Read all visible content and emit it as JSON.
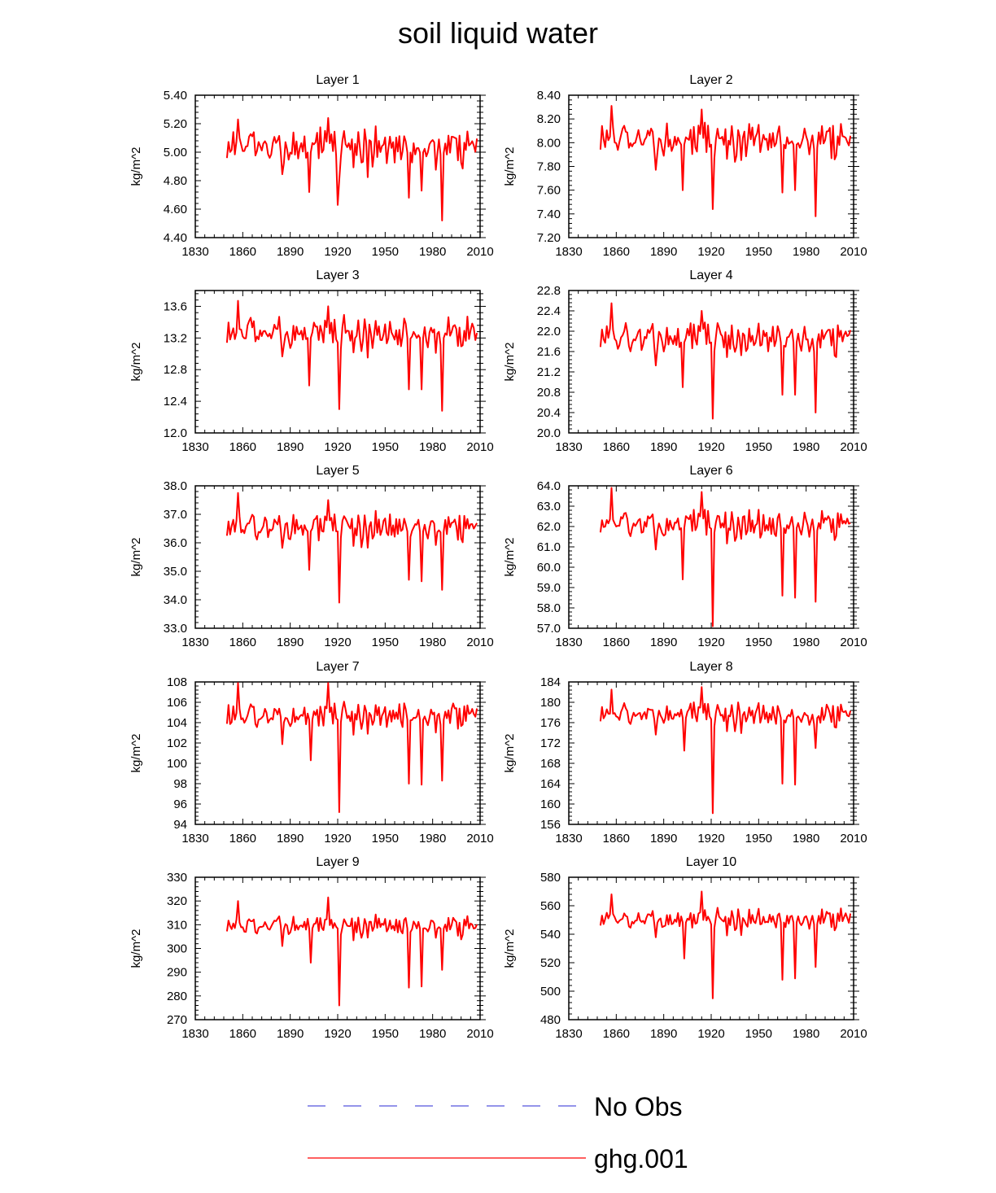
{
  "title": "soil liquid water",
  "colors": {
    "series": "#ff0000",
    "noobs": "#5555dd",
    "axis": "#000000"
  },
  "legend": [
    {
      "label": "No Obs",
      "style": "dashed",
      "color": "#5555dd"
    },
    {
      "label": "ghg.001",
      "style": "solid",
      "color": "#ff0000"
    }
  ],
  "chart_data": [
    {
      "type": "line",
      "title": "Layer 1",
      "ylabel": "kg/m^2",
      "xlim": [
        1830,
        2010
      ],
      "ylim": [
        4.4,
        5.4
      ],
      "xticks": [
        1830,
        1860,
        1890,
        1920,
        1950,
        1980,
        2010
      ],
      "xticklabels": [
        "1830",
        "1860",
        "1890",
        "1920",
        "1950",
        "1980",
        "2010"
      ],
      "yticks": [
        4.4,
        4.6,
        4.8,
        5.0,
        5.2,
        5.4
      ],
      "yticklabels": [
        "4.40",
        "4.60",
        "4.80",
        "5.00",
        "5.20",
        "5.40"
      ],
      "base": 5.05,
      "baseline_variation": 0.06,
      "amp": 0.13,
      "x_start": 1850,
      "x_end": 2008,
      "dips": [
        [
          1902,
          4.72
        ],
        [
          1920,
          4.63
        ],
        [
          1965,
          4.68
        ],
        [
          1973,
          4.73
        ],
        [
          1986,
          4.52
        ]
      ],
      "peaks": [
        [
          1857,
          5.23
        ],
        [
          1914,
          5.24
        ]
      ],
      "series": [
        {
          "name": "ghg.001"
        }
      ]
    },
    {
      "type": "line",
      "title": "Layer 2",
      "ylabel": "kg/m^2",
      "xlim": [
        1830,
        2010
      ],
      "ylim": [
        7.2,
        8.4
      ],
      "xticks": [
        1830,
        1860,
        1890,
        1920,
        1950,
        1980,
        2010
      ],
      "xticklabels": [
        "1830",
        "1860",
        "1890",
        "1920",
        "1950",
        "1980",
        "2010"
      ],
      "yticks": [
        7.2,
        7.4,
        7.6,
        7.8,
        8.0,
        8.2,
        8.4
      ],
      "yticklabels": [
        "7.20",
        "7.40",
        "7.60",
        "7.80",
        "8.00",
        "8.20",
        "8.40"
      ],
      "base": 8.04,
      "baseline_variation": 0.07,
      "amp": 0.14,
      "x_start": 1850,
      "x_end": 2008,
      "dips": [
        [
          1902,
          7.6
        ],
        [
          1921,
          7.44
        ],
        [
          1965,
          7.58
        ],
        [
          1973,
          7.6
        ],
        [
          1986,
          7.38
        ]
      ],
      "peaks": [
        [
          1857,
          8.31
        ],
        [
          1914,
          8.28
        ]
      ],
      "series": [
        {
          "name": "ghg.001"
        }
      ]
    },
    {
      "type": "line",
      "title": "Layer 3",
      "ylabel": "kg/m^2",
      "xlim": [
        1830,
        2010
      ],
      "ylim": [
        12.0,
        13.8
      ],
      "xticks": [
        1830,
        1860,
        1890,
        1920,
        1950,
        1980,
        2010
      ],
      "xticklabels": [
        "1830",
        "1860",
        "1890",
        "1920",
        "1950",
        "1980",
        "2010"
      ],
      "yticks": [
        12.0,
        12.4,
        12.8,
        13.2,
        13.6
      ],
      "yticklabels": [
        "12.0",
        "12.4",
        "12.8",
        "13.2",
        "13.6"
      ],
      "base": 13.28,
      "baseline_variation": 0.1,
      "amp": 0.2,
      "x_start": 1850,
      "x_end": 2008,
      "dips": [
        [
          1902,
          12.6
        ],
        [
          1921,
          12.3
        ],
        [
          1965,
          12.55
        ],
        [
          1973,
          12.55
        ],
        [
          1986,
          12.28
        ]
      ],
      "peaks": [
        [
          1857,
          13.67
        ],
        [
          1914,
          13.6
        ]
      ],
      "series": [
        {
          "name": "ghg.001"
        }
      ]
    },
    {
      "type": "line",
      "title": "Layer 4",
      "ylabel": "kg/m^2",
      "xlim": [
        1830,
        2010
      ],
      "ylim": [
        20.0,
        22.8
      ],
      "xticks": [
        1830,
        1860,
        1890,
        1920,
        1950,
        1980,
        2010
      ],
      "xticklabels": [
        "1830",
        "1860",
        "1890",
        "1920",
        "1950",
        "1980",
        "2010"
      ],
      "yticks": [
        20.0,
        20.4,
        20.8,
        21.2,
        21.6,
        22.0,
        22.4,
        22.8
      ],
      "yticklabels": [
        "20.0",
        "20.4",
        "20.8",
        "21.2",
        "21.6",
        "22.0",
        "22.4",
        "22.8"
      ],
      "base": 21.9,
      "baseline_variation": 0.15,
      "amp": 0.3,
      "x_start": 1850,
      "x_end": 2008,
      "dips": [
        [
          1902,
          20.9
        ],
        [
          1921,
          20.28
        ],
        [
          1965,
          20.75
        ],
        [
          1973,
          20.75
        ],
        [
          1986,
          20.4
        ]
      ],
      "peaks": [
        [
          1857,
          22.55
        ],
        [
          1914,
          22.4
        ]
      ],
      "series": [
        {
          "name": "ghg.001"
        }
      ]
    },
    {
      "type": "line",
      "title": "Layer 5",
      "ylabel": "kg/m^2",
      "xlim": [
        1830,
        2010
      ],
      "ylim": [
        33.0,
        38.0
      ],
      "xticks": [
        1830,
        1860,
        1890,
        1920,
        1950,
        1980,
        2010
      ],
      "xticklabels": [
        "1830",
        "1860",
        "1890",
        "1920",
        "1950",
        "1980",
        "2010"
      ],
      "yticks": [
        33.0,
        34.0,
        35.0,
        36.0,
        37.0,
        38.0
      ],
      "yticklabels": [
        "33.0",
        "34.0",
        "35.0",
        "36.0",
        "37.0",
        "38.0"
      ],
      "base": 36.6,
      "baseline_variation": 0.25,
      "amp": 0.5,
      "x_start": 1850,
      "x_end": 2008,
      "dips": [
        [
          1902,
          35.05
        ],
        [
          1921,
          33.9
        ],
        [
          1965,
          34.7
        ],
        [
          1973,
          34.65
        ],
        [
          1986,
          34.35
        ]
      ],
      "peaks": [
        [
          1857,
          37.75
        ],
        [
          1914,
          37.5
        ]
      ],
      "series": [
        {
          "name": "ghg.001"
        }
      ]
    },
    {
      "type": "line",
      "title": "Layer 6",
      "ylabel": "kg/m^2",
      "xlim": [
        1830,
        2010
      ],
      "ylim": [
        57.0,
        64.0
      ],
      "xticks": [
        1830,
        1860,
        1890,
        1920,
        1950,
        1980,
        2010
      ],
      "xticklabels": [
        "1830",
        "1860",
        "1890",
        "1920",
        "1950",
        "1980",
        "2010"
      ],
      "yticks": [
        57.0,
        58.0,
        59.0,
        60.0,
        61.0,
        62.0,
        63.0,
        64.0
      ],
      "yticklabels": [
        "57.0",
        "58.0",
        "59.0",
        "60.0",
        "61.0",
        "62.0",
        "63.0",
        "64.0"
      ],
      "base": 62.2,
      "baseline_variation": 0.35,
      "amp": 0.7,
      "x_start": 1850,
      "x_end": 2008,
      "dips": [
        [
          1902,
          59.4
        ],
        [
          1921,
          57.1
        ],
        [
          1965,
          58.6
        ],
        [
          1973,
          58.5
        ],
        [
          1986,
          58.3
        ]
      ],
      "peaks": [
        [
          1857,
          63.9
        ],
        [
          1914,
          63.7
        ]
      ],
      "series": [
        {
          "name": "ghg.001"
        }
      ]
    },
    {
      "type": "line",
      "title": "Layer 7",
      "ylabel": "kg/m^2",
      "xlim": [
        1830,
        2010
      ],
      "ylim": [
        94,
        108
      ],
      "xticks": [
        1830,
        1860,
        1890,
        1920,
        1950,
        1980,
        2010
      ],
      "xticklabels": [
        "1830",
        "1860",
        "1890",
        "1920",
        "1950",
        "1980",
        "2010"
      ],
      "yticks": [
        94,
        96,
        98,
        100,
        102,
        104,
        106,
        108
      ],
      "yticklabels": [
        "94",
        "96",
        "98",
        "100",
        "102",
        "104",
        "106",
        "108"
      ],
      "base": 104.8,
      "baseline_variation": 0.6,
      "amp": 1.3,
      "x_start": 1850,
      "x_end": 2008,
      "dips": [
        [
          1903,
          100.3
        ],
        [
          1921,
          95.2
        ],
        [
          1965,
          98.0
        ],
        [
          1973,
          97.9
        ],
        [
          1986,
          98.3
        ]
      ],
      "peaks": [
        [
          1857,
          107.9
        ],
        [
          1914,
          107.9
        ]
      ],
      "series": [
        {
          "name": "ghg.001"
        }
      ]
    },
    {
      "type": "line",
      "title": "Layer 8",
      "ylabel": "kg/m^2",
      "xlim": [
        1830,
        2010
      ],
      "ylim": [
        156,
        184
      ],
      "xticks": [
        1830,
        1860,
        1890,
        1920,
        1950,
        1980,
        2010
      ],
      "xticklabels": [
        "1830",
        "1860",
        "1890",
        "1920",
        "1950",
        "1980",
        "2010"
      ],
      "yticks": [
        156,
        160,
        164,
        168,
        172,
        176,
        180,
        184
      ],
      "yticklabels": [
        "156",
        "160",
        "164",
        "168",
        "172",
        "176",
        "180",
        "184"
      ],
      "base": 177.8,
      "baseline_variation": 1.0,
      "amp": 2.2,
      "x_start": 1850,
      "x_end": 2008,
      "dips": [
        [
          1903,
          170.5
        ],
        [
          1921,
          158.2
        ],
        [
          1965,
          164
        ],
        [
          1973,
          163.8
        ],
        [
          1986,
          171
        ]
      ],
      "peaks": [
        [
          1857,
          182.5
        ],
        [
          1914,
          183
        ]
      ],
      "series": [
        {
          "name": "ghg.001"
        }
      ]
    },
    {
      "type": "line",
      "title": "Layer 9",
      "ylabel": "kg/m^2",
      "xlim": [
        1830,
        2010
      ],
      "ylim": [
        270,
        330
      ],
      "xticks": [
        1830,
        1860,
        1890,
        1920,
        1950,
        1980,
        2010
      ],
      "xticklabels": [
        "1830",
        "1860",
        "1890",
        "1920",
        "1950",
        "1980",
        "2010"
      ],
      "yticks": [
        270,
        280,
        290,
        300,
        310,
        320,
        330
      ],
      "yticklabels": [
        "270",
        "280",
        "290",
        "300",
        "310",
        "320",
        "330"
      ],
      "base": 310,
      "baseline_variation": 2.0,
      "amp": 4.0,
      "x_start": 1850,
      "x_end": 2008,
      "dips": [
        [
          1903,
          294
        ],
        [
          1921,
          276
        ],
        [
          1965,
          283.5
        ],
        [
          1973,
          284
        ],
        [
          1986,
          291
        ]
      ],
      "peaks": [
        [
          1857,
          320
        ],
        [
          1914,
          321.5
        ]
      ],
      "series": [
        {
          "name": "ghg.001"
        }
      ]
    },
    {
      "type": "line",
      "title": "Layer 10",
      "ylabel": "kg/m^2",
      "xlim": [
        1830,
        2010
      ],
      "ylim": [
        480,
        580
      ],
      "xticks": [
        1830,
        1860,
        1890,
        1920,
        1950,
        1980,
        2010
      ],
      "xticklabels": [
        "1830",
        "1860",
        "1890",
        "1920",
        "1950",
        "1980",
        "2010"
      ],
      "yticks": [
        480,
        500,
        520,
        540,
        560,
        580
      ],
      "yticklabels": [
        "480",
        "500",
        "520",
        "540",
        "560",
        "580"
      ],
      "base": 551,
      "baseline_variation": 3.5,
      "amp": 7.0,
      "x_start": 1850,
      "x_end": 2008,
      "dips": [
        [
          1903,
          523
        ],
        [
          1921,
          495
        ],
        [
          1965,
          508
        ],
        [
          1973,
          509
        ],
        [
          1986,
          517
        ]
      ],
      "peaks": [
        [
          1857,
          568
        ],
        [
          1914,
          570
        ]
      ],
      "series": [
        {
          "name": "ghg.001"
        }
      ]
    }
  ]
}
